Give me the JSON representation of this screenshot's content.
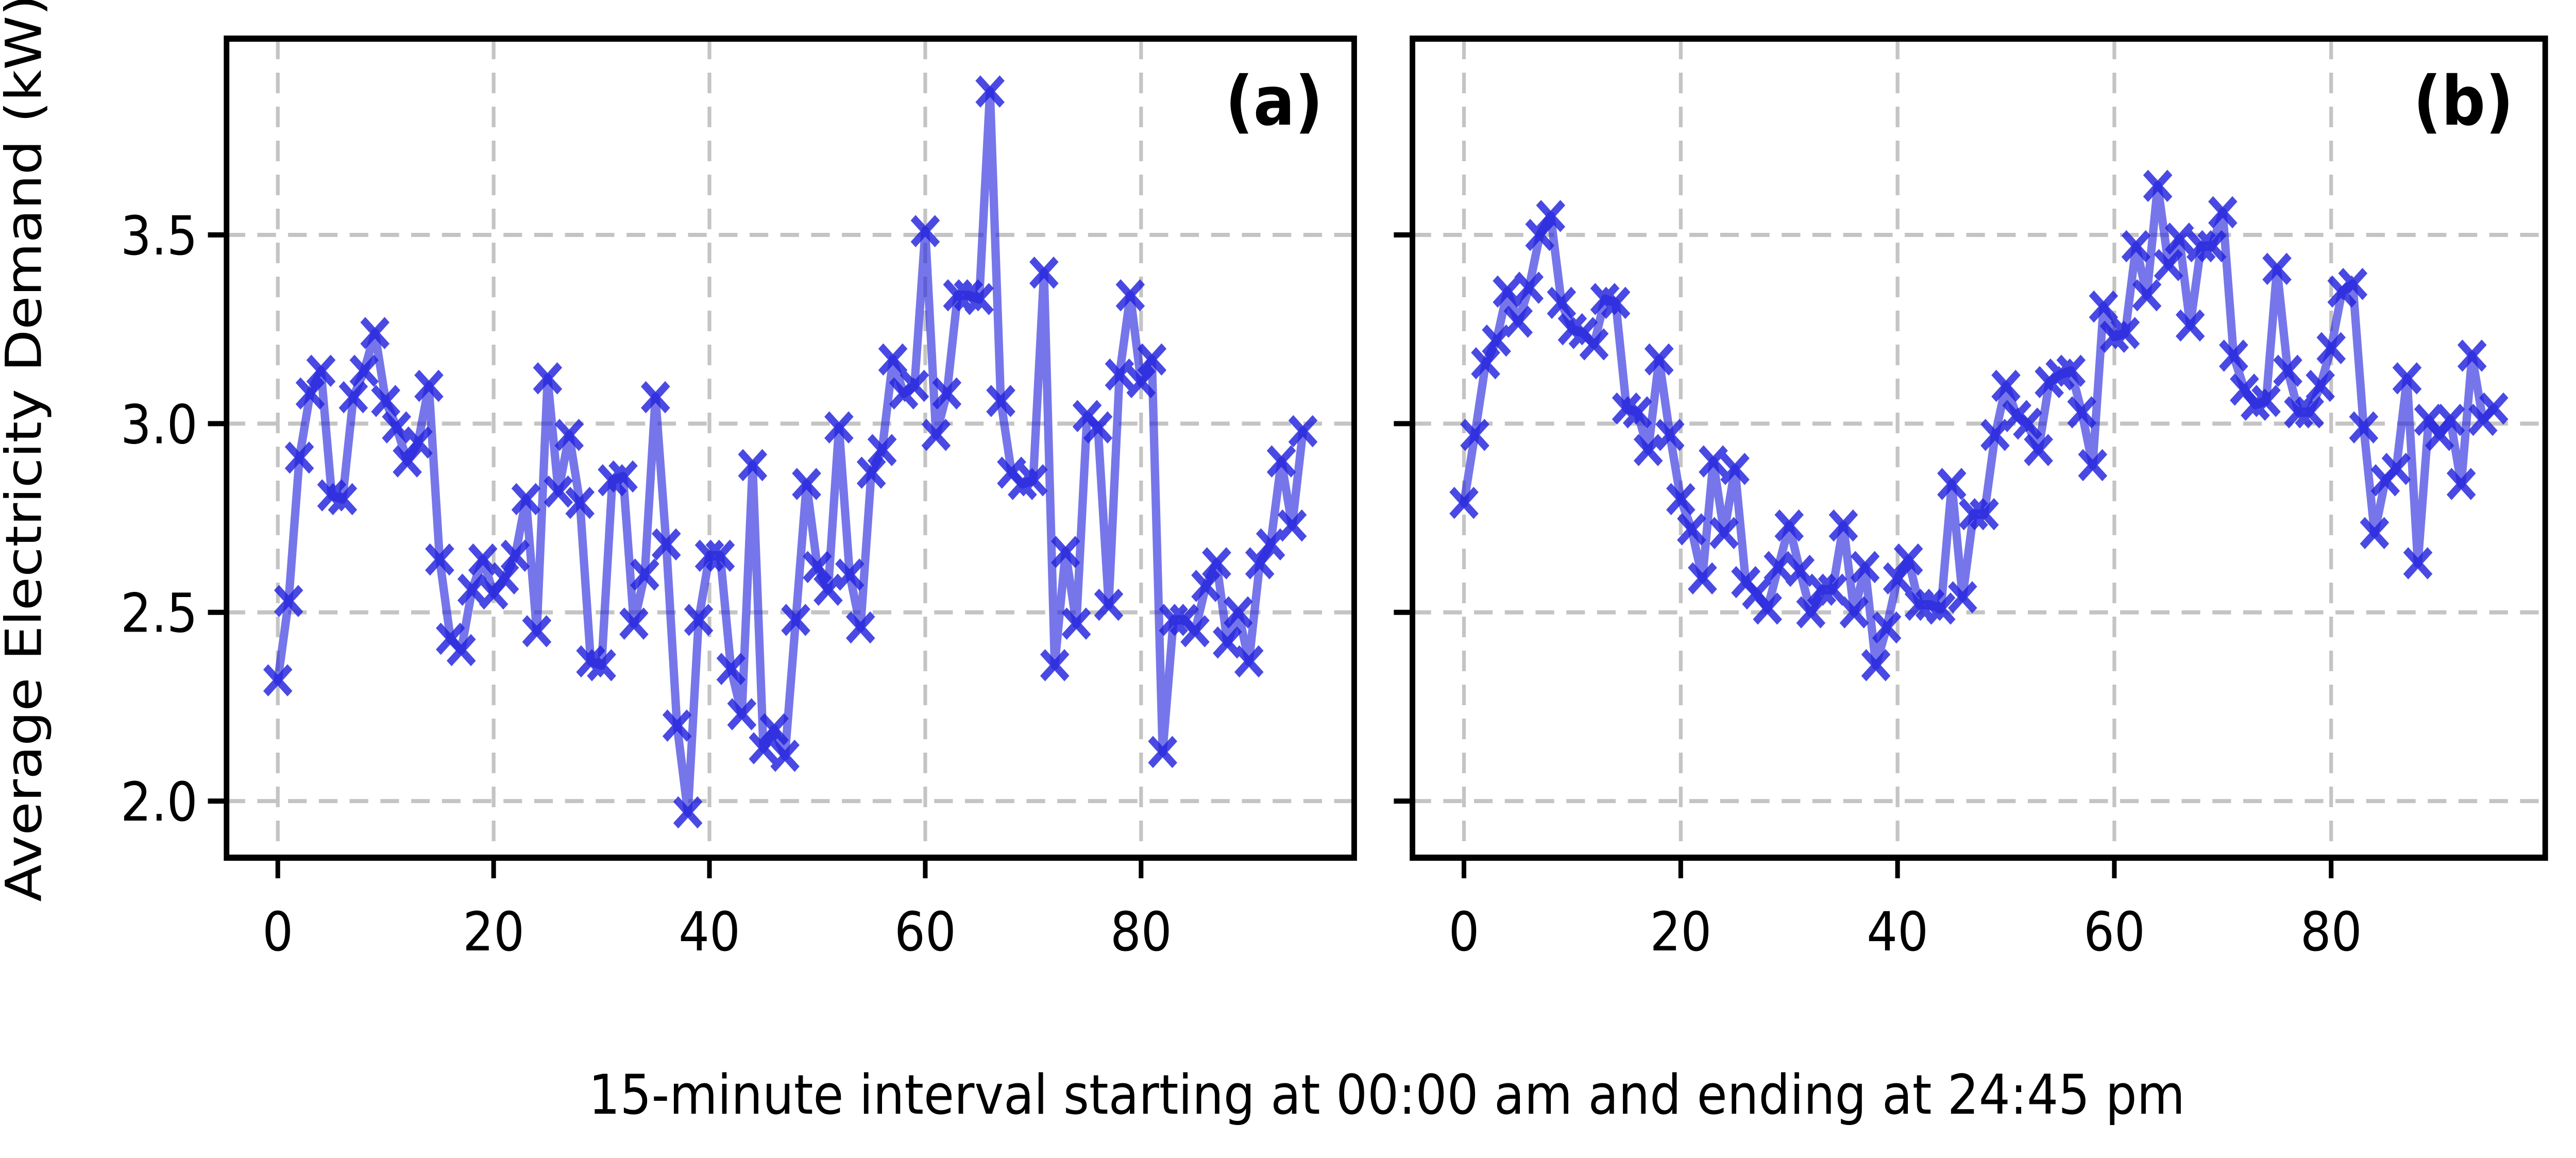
{
  "figure": {
    "ylabel": "Average Electricity Demand (kW)",
    "xlabel": "15-minute interval starting at 00:00 am and ending at 24:45 pm",
    "background_color": "#ffffff",
    "line_color": "#2222dd",
    "marker_shape": "x",
    "grid_color": "#c4c4c4",
    "spine_color": "#000000",
    "text_color": "#000000"
  },
  "chart_data": [
    {
      "type": "line",
      "label": "(a)",
      "marker": "x",
      "legend_position": "none",
      "grid": true,
      "x_start": 0,
      "x_step": 1,
      "x_ticks": [
        0,
        20,
        40,
        60,
        80
      ],
      "x_tick_labels": [
        "0",
        "20",
        "40",
        "60",
        "80"
      ],
      "y_ticks": [
        2.0,
        2.5,
        3.0,
        3.5
      ],
      "y_tick_labels": [
        "2.0",
        "2.5",
        "3.0",
        "3.5"
      ],
      "show_y_tick_labels": true,
      "xlim": [
        -4.75,
        99.75
      ],
      "ylim": [
        1.85,
        4.02
      ],
      "values": [
        2.32,
        2.53,
        2.91,
        3.08,
        3.14,
        2.81,
        2.8,
        3.07,
        3.14,
        3.24,
        3.06,
        2.99,
        2.9,
        2.95,
        3.1,
        2.64,
        2.43,
        2.4,
        2.56,
        2.64,
        2.55,
        2.59,
        2.65,
        2.8,
        2.45,
        3.12,
        2.82,
        2.97,
        2.79,
        2.37,
        2.36,
        2.85,
        2.86,
        2.47,
        2.6,
        3.07,
        2.68,
        2.2,
        1.97,
        2.48,
        2.65,
        2.65,
        2.35,
        2.23,
        2.89,
        2.14,
        2.19,
        2.12,
        2.48,
        2.84,
        2.62,
        2.56,
        2.99,
        2.6,
        2.46,
        2.87,
        2.93,
        3.17,
        3.08,
        3.1,
        3.51,
        2.97,
        3.08,
        3.34,
        3.34,
        3.33,
        3.88,
        3.06,
        2.87,
        2.84,
        2.85,
        3.4,
        2.36,
        2.66,
        2.47,
        3.02,
        2.99,
        2.52,
        3.13,
        3.34,
        3.11,
        3.17,
        2.13,
        2.48,
        2.48,
        2.45,
        2.57,
        2.63,
        2.42,
        2.5,
        2.37,
        2.63,
        2.68,
        2.9,
        2.73,
        2.98
      ]
    },
    {
      "type": "line",
      "label": "(b)",
      "marker": "x",
      "legend_position": "none",
      "grid": true,
      "x_start": 0,
      "x_step": 1,
      "x_ticks": [
        0,
        20,
        40,
        60,
        80
      ],
      "x_tick_labels": [
        "0",
        "20",
        "40",
        "60",
        "80"
      ],
      "y_ticks": [
        2.0,
        2.5,
        3.0,
        3.5
      ],
      "y_tick_labels": [
        "2.0",
        "2.5",
        "3.0",
        "3.5"
      ],
      "show_y_tick_labels": false,
      "xlim": [
        -4.75,
        99.75
      ],
      "ylim": [
        1.85,
        4.02
      ],
      "values": [
        2.79,
        2.97,
        3.16,
        3.22,
        3.35,
        3.27,
        3.36,
        3.5,
        3.55,
        3.32,
        3.25,
        3.24,
        3.21,
        3.33,
        3.32,
        3.04,
        3.03,
        2.93,
        3.17,
        2.97,
        2.8,
        2.72,
        2.59,
        2.9,
        2.71,
        2.88,
        2.58,
        2.55,
        2.51,
        2.62,
        2.73,
        2.61,
        2.5,
        2.56,
        2.56,
        2.73,
        2.5,
        2.62,
        2.36,
        2.46,
        2.59,
        2.64,
        2.52,
        2.52,
        2.51,
        2.84,
        2.54,
        2.76,
        2.76,
        2.97,
        3.1,
        3.02,
        3.0,
        2.93,
        3.11,
        3.13,
        3.14,
        3.03,
        2.89,
        3.31,
        3.23,
        3.24,
        3.47,
        3.34,
        3.63,
        3.42,
        3.49,
        3.26,
        3.47,
        3.47,
        3.56,
        3.18,
        3.09,
        3.05,
        3.06,
        3.41,
        3.14,
        3.03,
        3.03,
        3.1,
        3.2,
        3.35,
        3.37,
        2.99,
        2.71,
        2.85,
        2.88,
        3.12,
        2.63,
        3.01,
        2.97,
        3.01,
        2.84,
        3.18,
        3.01,
        3.04
      ]
    }
  ]
}
